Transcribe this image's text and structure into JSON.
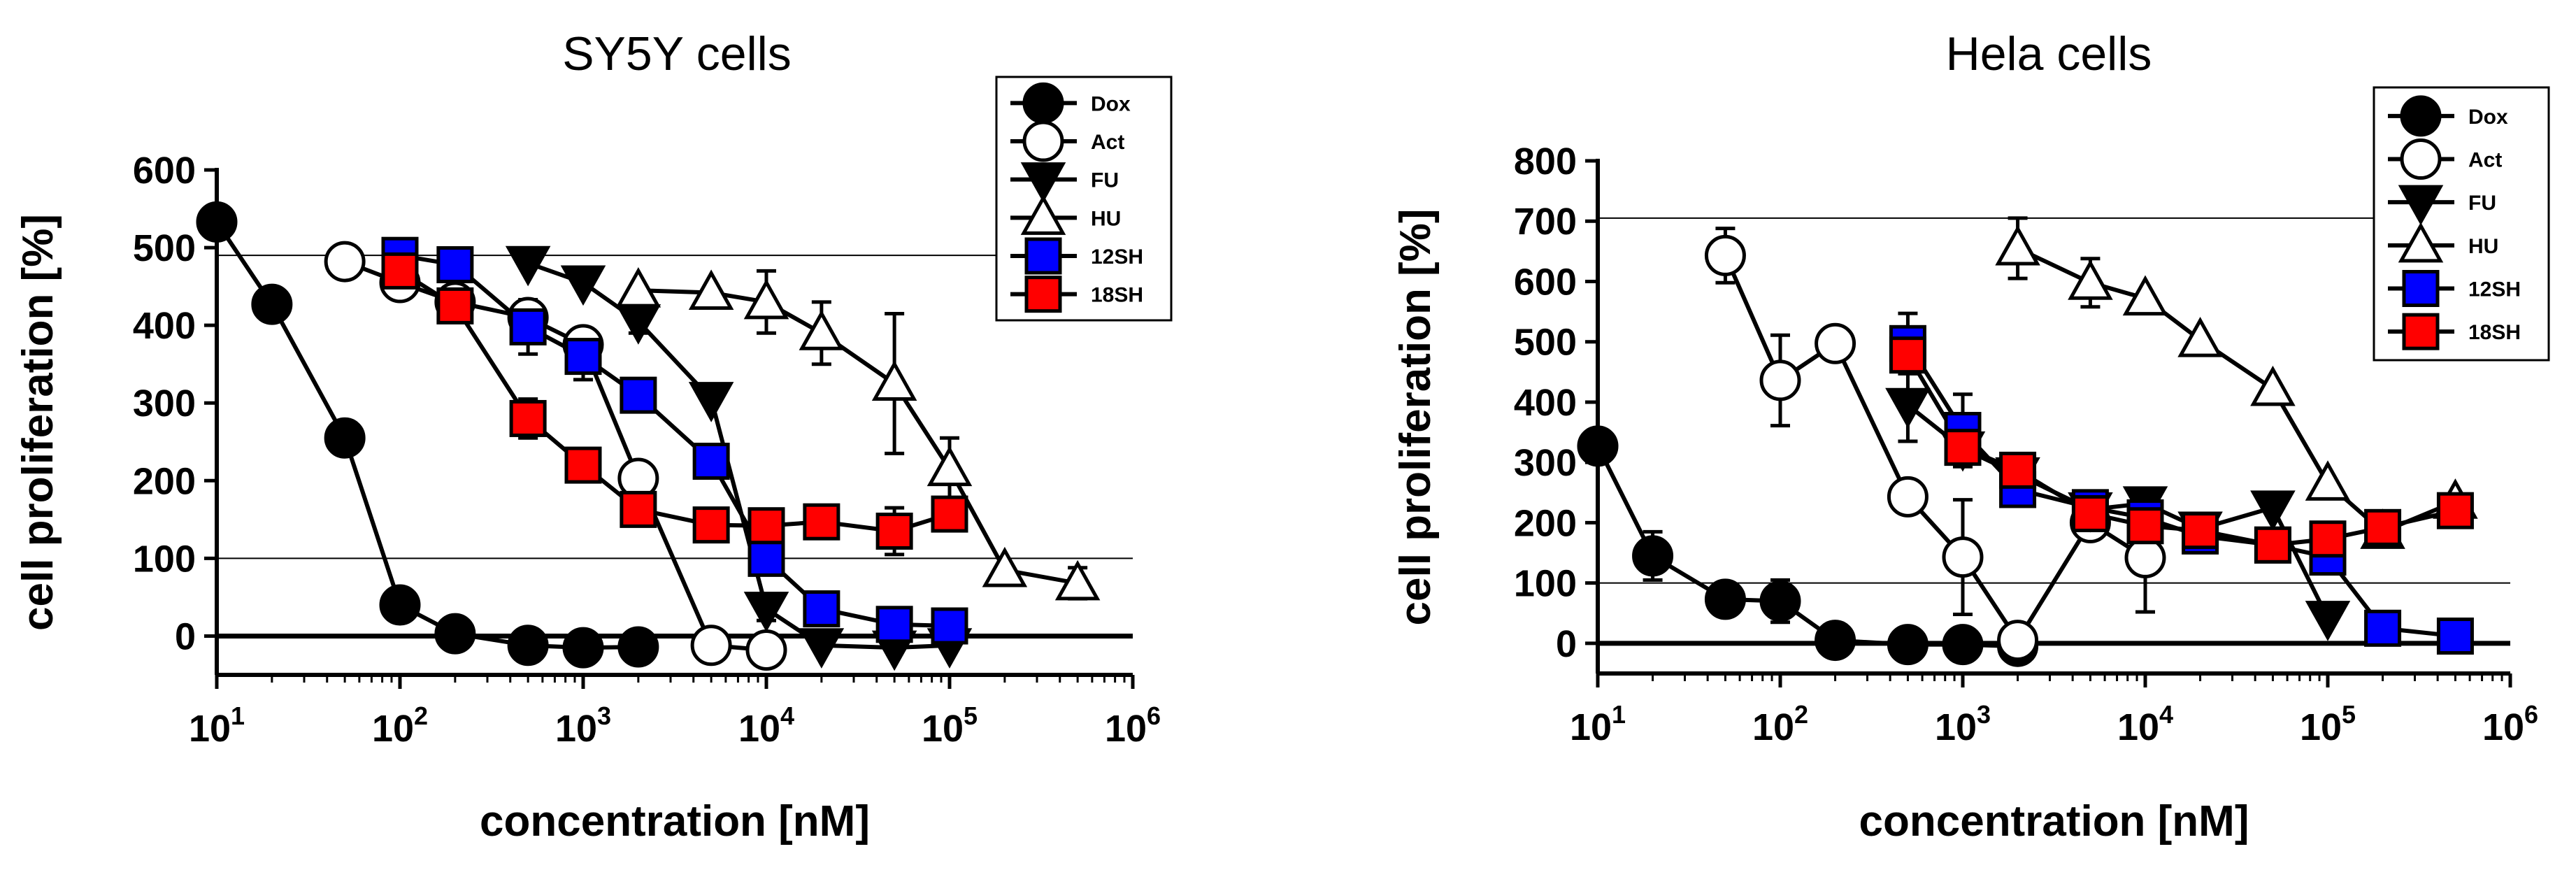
{
  "chart_data": [
    {
      "type": "line",
      "title": "SY5Y cells",
      "xlabel": "concentration [nM]",
      "ylabel": "cell proliferation [%]",
      "xscale": "log",
      "xlim": [
        10,
        1000000
      ],
      "ylim": [
        -50,
        600
      ],
      "yticks": [
        0,
        100,
        200,
        300,
        400,
        500,
        600
      ],
      "xticks": [
        10,
        100,
        1000,
        10000,
        100000,
        1000000
      ],
      "xtick_labels": [
        {
          "base": "10",
          "exp": "1"
        },
        {
          "base": "10",
          "exp": "2"
        },
        {
          "base": "10",
          "exp": "3"
        },
        {
          "base": "10",
          "exp": "4"
        },
        {
          "base": "10",
          "exp": "5"
        },
        {
          "base": "10",
          "exp": "6"
        }
      ],
      "reference_lines": [
        490,
        100,
        0
      ],
      "legend_position": "top-right",
      "series": [
        {
          "name": "Dox",
          "marker": "circle",
          "fill": "#000000",
          "x": [
            10,
            20,
            50,
            100,
            200,
            500,
            1000,
            2000
          ],
          "y": [
            533,
            427,
            255,
            40,
            3,
            -12,
            -15,
            -14
          ]
        },
        {
          "name": "Act",
          "marker": "circle",
          "fill": "#ffffff",
          "x": [
            50,
            100,
            200,
            500,
            1000,
            2000,
            5000,
            10000
          ],
          "y": [
            482,
            455,
            430,
            410,
            375,
            203,
            -12,
            -18
          ]
        },
        {
          "name": "FU",
          "marker": "triangle-down",
          "fill": "#000000",
          "x": [
            500,
            1000,
            2000,
            5000,
            10000,
            20000,
            50000,
            100000
          ],
          "y": [
            480,
            455,
            405,
            305,
            35,
            -12,
            -15,
            -12
          ],
          "err": [
            0,
            0,
            15,
            0,
            15,
            0,
            0,
            0
          ]
        },
        {
          "name": "HU",
          "marker": "triangle-up",
          "fill": "#ffffff",
          "x": [
            2000,
            5000,
            10000,
            20000,
            50000,
            100000,
            200000,
            500000
          ],
          "y": [
            445,
            442,
            430,
            390,
            325,
            215,
            85,
            68
          ],
          "err": [
            0,
            0,
            40,
            40,
            90,
            40,
            0,
            20
          ]
        },
        {
          "name": "12SH",
          "marker": "square",
          "fill": "#0000ff",
          "x": [
            100,
            200,
            500,
            1000,
            2000,
            5000,
            10000,
            20000,
            50000,
            100000
          ],
          "y": [
            490,
            478,
            398,
            360,
            310,
            225,
            100,
            35,
            15,
            13
          ],
          "err": [
            0,
            0,
            35,
            30,
            20,
            0,
            10,
            0,
            0,
            0
          ]
        },
        {
          "name": "18SH",
          "marker": "square",
          "fill": "#ff0000",
          "x": [
            100,
            200,
            500,
            1000,
            2000,
            5000,
            10000,
            20000,
            50000,
            100000
          ],
          "y": [
            470,
            425,
            280,
            220,
            163,
            143,
            142,
            147,
            135,
            157
          ],
          "err": [
            0,
            15,
            25,
            0,
            0,
            0,
            15,
            15,
            30,
            20
          ]
        }
      ]
    },
    {
      "type": "line",
      "title": "Hela cells",
      "xlabel": "concentration [nM]",
      "ylabel": "cell proliferation [%]",
      "xscale": "log",
      "xlim": [
        10,
        1000000
      ],
      "ylim": [
        -50,
        800
      ],
      "yticks": [
        0,
        100,
        200,
        300,
        400,
        500,
        600,
        700,
        800
      ],
      "xticks": [
        10,
        100,
        1000,
        10000,
        100000,
        1000000
      ],
      "xtick_labels": [
        {
          "base": "10",
          "exp": "1"
        },
        {
          "base": "10",
          "exp": "2"
        },
        {
          "base": "10",
          "exp": "3"
        },
        {
          "base": "10",
          "exp": "4"
        },
        {
          "base": "10",
          "exp": "5"
        },
        {
          "base": "10",
          "exp": "6"
        }
      ],
      "reference_lines": [
        705,
        100,
        0
      ],
      "legend_position": "top-right",
      "series": [
        {
          "name": "Dox",
          "marker": "circle",
          "fill": "#000000",
          "x": [
            10,
            20,
            50,
            100,
            200,
            500,
            1000,
            2000
          ],
          "y": [
            327,
            145,
            73,
            70,
            5,
            -2,
            -2,
            -5
          ],
          "err": [
            0,
            40,
            0,
            35,
            0,
            0,
            0,
            0
          ]
        },
        {
          "name": "Act",
          "marker": "circle",
          "fill": "#ffffff",
          "x": [
            50,
            100,
            200,
            500,
            1000,
            2000,
            5000,
            10000
          ],
          "y": [
            643,
            436,
            497,
            243,
            143,
            5,
            200,
            142
          ],
          "err": [
            45,
            75,
            0,
            0,
            95,
            0,
            0,
            90
          ]
        },
        {
          "name": "FU",
          "marker": "triangle-down",
          "fill": "#000000",
          "x": [
            500,
            1000,
            2000,
            5000,
            10000,
            20000,
            50000,
            100000
          ],
          "y": [
            395,
            323,
            280,
            222,
            232,
            190,
            225,
            42
          ],
          "err": [
            60,
            0,
            0,
            0,
            0,
            0,
            0,
            0
          ]
        },
        {
          "name": "HU",
          "marker": "triangle-up",
          "fill": "#ffffff",
          "x": [
            2000,
            5000,
            10000,
            20000,
            50000,
            100000,
            200000,
            500000
          ],
          "y": [
            655,
            598,
            572,
            503,
            422,
            265,
            185,
            235
          ],
          "err": [
            50,
            40,
            0,
            0,
            0,
            0,
            0,
            0
          ]
        },
        {
          "name": "12SH",
          "marker": "square",
          "fill": "#0000ff",
          "x": [
            500,
            1000,
            2000,
            5000,
            10000,
            20000,
            50000,
            100000,
            200000,
            500000
          ],
          "y": [
            497,
            353,
            255,
            225,
            208,
            178,
            163,
            143,
            25,
            12
          ],
          "err": [
            50,
            60,
            25,
            0,
            0,
            0,
            0,
            0,
            0,
            0
          ]
        },
        {
          "name": "18SH",
          "marker": "square",
          "fill": "#ff0000",
          "x": [
            500,
            1000,
            2000,
            5000,
            10000,
            20000,
            50000,
            100000,
            200000,
            500000
          ],
          "y": [
            478,
            325,
            287,
            215,
            195,
            187,
            163,
            173,
            192,
            220
          ],
          "err": [
            0,
            0,
            0,
            0,
            0,
            0,
            0,
            0,
            0,
            0
          ]
        }
      ]
    }
  ]
}
